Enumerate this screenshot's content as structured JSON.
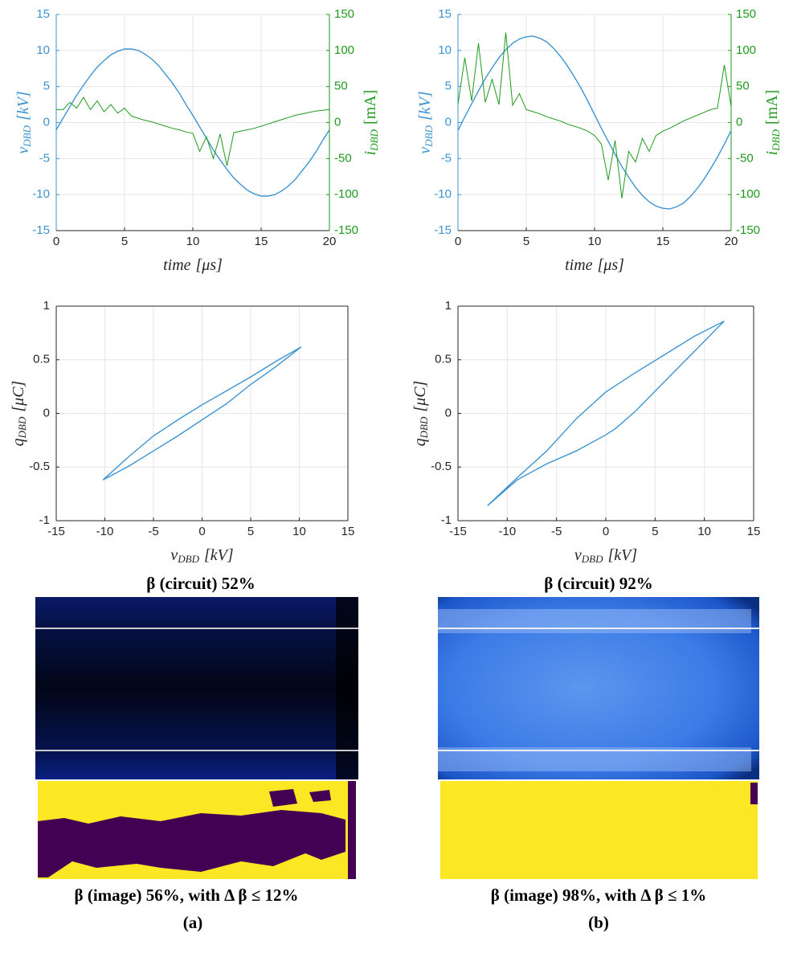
{
  "chart_data": [
    {
      "type": "line",
      "x": [
        0,
        0.5,
        1,
        1.5,
        2,
        2.5,
        3,
        3.5,
        4,
        4.5,
        5,
        5.5,
        6,
        6.5,
        7,
        7.5,
        8,
        8.5,
        9,
        9.5,
        10,
        10.5,
        11,
        11.5,
        12,
        12.5,
        13,
        13.5,
        14,
        14.5,
        15,
        15.5,
        16,
        16.5,
        17,
        17.5,
        18,
        18.5,
        19,
        19.5,
        20
      ],
      "xlim": [
        0,
        20
      ],
      "xticks": [
        0,
        5,
        10,
        15,
        20
      ],
      "ylim": [
        -15,
        15
      ],
      "yticks": [
        -15,
        -10,
        -5,
        0,
        5,
        10,
        15
      ],
      "y2lim": [
        -150,
        150
      ],
      "y2ticks": [
        -150,
        -100,
        -50,
        0,
        50,
        100,
        150
      ],
      "grid": true,
      "xlabel": {
        "main": "time",
        "unit": "[μs]"
      },
      "ylabel": {
        "main": "v",
        "sub": "DBD",
        "unit": "[kV]"
      },
      "y2label": {
        "main": "i",
        "sub": "DBD",
        "unit": "[mA]"
      },
      "series": [
        {
          "color": "#3d94d2",
          "values": [
            -1.0,
            0.6,
            2.2,
            3.8,
            5.2,
            6.5,
            7.7,
            8.6,
            9.4,
            9.9,
            10.2,
            10.2,
            10.0,
            9.5,
            8.8,
            7.9,
            6.7,
            5.5,
            4.1,
            2.5,
            1.0,
            -0.6,
            -2.2,
            -3.8,
            -5.2,
            -6.5,
            -7.7,
            -8.6,
            -9.4,
            -9.9,
            -10.2,
            -10.2,
            -10.0,
            -9.5,
            -8.8,
            -7.9,
            -6.7,
            -5.5,
            -4.1,
            -2.5,
            -1.0
          ]
        },
        {
          "color": "#1e9a1e",
          "axis": "y2",
          "values": [
            18,
            18,
            28,
            20,
            35,
            18,
            30,
            15,
            25,
            13,
            20,
            9,
            6,
            3,
            1,
            -2,
            -5,
            -8,
            -10,
            -13,
            -15,
            -40,
            -20,
            -50,
            -16,
            -60,
            -14,
            -12,
            -10,
            -8,
            -5,
            -2,
            1,
            4,
            7,
            10,
            12,
            14,
            16,
            17,
            18
          ]
        }
      ]
    },
    {
      "type": "line",
      "x": [
        0,
        0.5,
        1,
        1.5,
        2,
        2.5,
        3,
        3.5,
        4,
        4.5,
        5,
        5.5,
        6,
        6.5,
        7,
        7.5,
        8,
        8.5,
        9,
        9.5,
        10,
        10.5,
        11,
        11.5,
        12,
        12.5,
        13,
        13.5,
        14,
        14.5,
        15,
        15.5,
        16,
        16.5,
        17,
        17.5,
        18,
        18.5,
        19,
        19.5,
        20
      ],
      "xlim": [
        0,
        20
      ],
      "xticks": [
        0,
        5,
        10,
        15,
        20
      ],
      "ylim": [
        -15,
        15
      ],
      "yticks": [
        -15,
        -10,
        -5,
        0,
        5,
        10,
        15
      ],
      "y2lim": [
        -150,
        150
      ],
      "y2ticks": [
        -150,
        -100,
        -50,
        0,
        50,
        100,
        150
      ],
      "grid": true,
      "xlabel": {
        "main": "time",
        "unit": "[μs]"
      },
      "ylabel": {
        "main": "v",
        "sub": "DBD",
        "unit": "[kV]"
      },
      "y2label": {
        "main": "i",
        "sub": "DBD",
        "unit": "[mA]"
      },
      "series": [
        {
          "color": "#3d94d2",
          "values": [
            -1.1,
            0.8,
            2.6,
            4.4,
            6.1,
            7.6,
            9.0,
            10.1,
            11.0,
            11.6,
            11.9,
            12.0,
            11.7,
            11.2,
            10.3,
            9.2,
            7.9,
            6.4,
            4.8,
            3.0,
            1.1,
            -0.8,
            -2.6,
            -4.4,
            -6.1,
            -7.6,
            -9.0,
            -10.1,
            -11.0,
            -11.6,
            -11.9,
            -12.0,
            -11.7,
            -11.2,
            -10.3,
            -9.2,
            -7.9,
            -6.4,
            -4.8,
            -3.0,
            -1.1
          ]
        },
        {
          "color": "#1e9a1e",
          "axis": "y2",
          "values": [
            25,
            90,
            30,
            110,
            28,
            60,
            25,
            125,
            24,
            40,
            18,
            15,
            12,
            8,
            5,
            2,
            -2,
            -5,
            -8,
            -12,
            -18,
            -30,
            -80,
            -25,
            -105,
            -40,
            -55,
            -22,
            -40,
            -18,
            -12,
            -8,
            -3,
            2,
            6,
            10,
            14,
            18,
            20,
            80,
            22
          ]
        }
      ]
    },
    {
      "type": "line",
      "xlim": [
        -15,
        15
      ],
      "xticks": [
        -15,
        -10,
        -5,
        0,
        5,
        10,
        15
      ],
      "ylim": [
        -1,
        1
      ],
      "yticks": [
        -1,
        -0.5,
        0,
        0.5,
        1
      ],
      "grid": true,
      "xlabel": {
        "main": "v",
        "sub": "DBD",
        "unit": "[kV]"
      },
      "ylabel": {
        "main": "q",
        "sub": "DBD",
        "unit": "[μC]"
      },
      "series": [
        {
          "color": "#3d94d2",
          "x": [
            -10.2,
            -7.5,
            -5,
            -2.5,
            0,
            2.5,
            5,
            7.5,
            10.2,
            7.5,
            5,
            2.5,
            0,
            -2.5,
            -5,
            -7.5,
            -10.2
          ],
          "values": [
            -0.62,
            -0.49,
            -0.35,
            -0.21,
            -0.06,
            0.09,
            0.27,
            0.43,
            0.62,
            0.48,
            0.34,
            0.21,
            0.08,
            -0.06,
            -0.21,
            -0.4,
            -0.62
          ]
        }
      ]
    },
    {
      "type": "line",
      "xlim": [
        -15,
        15
      ],
      "xticks": [
        -15,
        -10,
        -5,
        0,
        5,
        10,
        15
      ],
      "ylim": [
        -1,
        1
      ],
      "yticks": [
        -1,
        -0.5,
        0,
        0.5,
        1
      ],
      "grid": true,
      "xlabel": {
        "main": "v",
        "sub": "DBD",
        "unit": "[kV]"
      },
      "ylabel": {
        "main": "q",
        "sub": "DBD",
        "unit": "[μC]"
      },
      "series": [
        {
          "color": "#3d94d2",
          "x": [
            -12,
            -9,
            -6,
            -3,
            0,
            1,
            3,
            6,
            9,
            12,
            9,
            6,
            3,
            0,
            -3,
            -6,
            -9,
            -12
          ],
          "values": [
            -0.86,
            -0.62,
            -0.47,
            -0.35,
            -0.2,
            -0.14,
            0.02,
            0.3,
            0.58,
            0.86,
            0.72,
            0.55,
            0.38,
            0.2,
            -0.05,
            -0.35,
            -0.6,
            -0.86
          ]
        }
      ]
    }
  ],
  "captions": {
    "circuit_a": "β (circuit) 52%",
    "circuit_b": "β (circuit) 92%",
    "image_a": "β (image) 56%, with Δ β ≤ 12%",
    "image_b": "β (image) 98%, with Δ β ≤ 1%",
    "label_a": "(a)",
    "label_b": "(b)"
  }
}
